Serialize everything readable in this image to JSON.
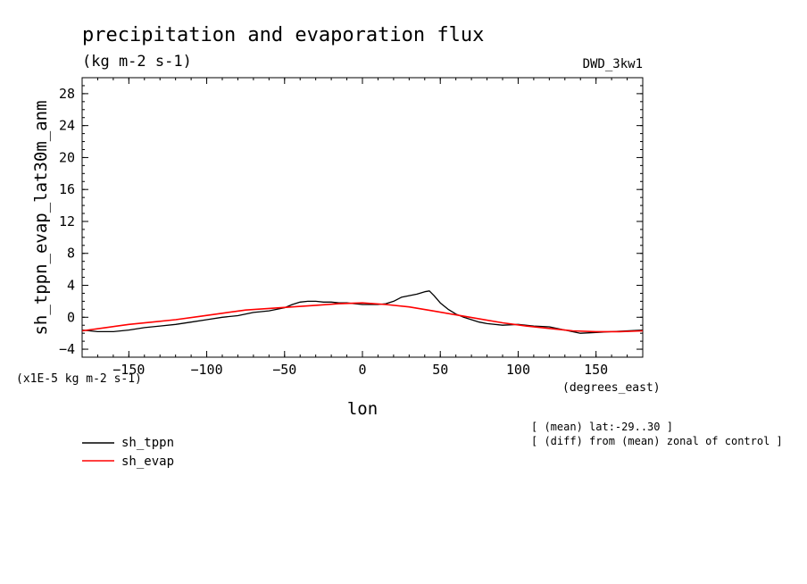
{
  "chart_data": {
    "type": "line",
    "title": "precipitation and evaporation flux",
    "units": "(kg m-2 s-1)",
    "model_label": "DWD_3kw1",
    "ylabel": "sh_tppn_evap_lat30m_anm",
    "scale_note": "(x1E-5 kg m-2 s-1)",
    "xlabel": "lon",
    "x_unit": "(degrees_east)",
    "xlim": [
      -180,
      180
    ],
    "ylim": [
      -5,
      30
    ],
    "xticks": [
      -150,
      -100,
      -50,
      0,
      50,
      100,
      150
    ],
    "yticks": [
      -4,
      0,
      4,
      8,
      12,
      16,
      20,
      24,
      28
    ],
    "notes": [
      "[ (mean) lat:-29..30 ]",
      "[ (diff) from (mean) zonal of control ]"
    ],
    "series": [
      {
        "name": "sh_tppn",
        "color": "#000000",
        "x": [
          -180,
          -170,
          -160,
          -150,
          -140,
          -130,
          -120,
          -110,
          -100,
          -90,
          -80,
          -70,
          -60,
          -50,
          -45,
          -40,
          -35,
          -30,
          -25,
          -20,
          -15,
          -10,
          -5,
          0,
          5,
          10,
          15,
          20,
          25,
          30,
          35,
          40,
          43,
          46,
          50,
          55,
          60,
          65,
          70,
          75,
          80,
          90,
          100,
          110,
          120,
          130,
          140,
          150,
          160,
          170,
          180
        ],
        "y": [
          -1.6,
          -1.8,
          -1.8,
          -1.6,
          -1.3,
          -1.1,
          -0.9,
          -0.6,
          -0.3,
          0.0,
          0.2,
          0.6,
          0.8,
          1.2,
          1.6,
          1.9,
          2.0,
          2.0,
          1.9,
          1.9,
          1.8,
          1.8,
          1.7,
          1.6,
          1.6,
          1.6,
          1.7,
          2.0,
          2.5,
          2.7,
          2.9,
          3.2,
          3.3,
          2.7,
          1.8,
          1.0,
          0.4,
          0.0,
          -0.3,
          -0.6,
          -0.8,
          -1.0,
          -0.9,
          -1.1,
          -1.2,
          -1.6,
          -2.0,
          -1.9,
          -1.8,
          -1.7,
          -1.6
        ]
      },
      {
        "name": "sh_evap",
        "color": "#ff0000",
        "x": [
          -180,
          -165,
          -150,
          -135,
          -120,
          -105,
          -90,
          -75,
          -60,
          -45,
          -30,
          -15,
          0,
          15,
          30,
          45,
          60,
          75,
          90,
          105,
          120,
          135,
          150,
          165,
          180
        ],
        "y": [
          -1.7,
          -1.3,
          -0.9,
          -0.6,
          -0.3,
          0.1,
          0.5,
          0.9,
          1.1,
          1.3,
          1.5,
          1.7,
          1.8,
          1.6,
          1.3,
          0.8,
          0.3,
          -0.2,
          -0.7,
          -1.1,
          -1.4,
          -1.7,
          -1.8,
          -1.8,
          -1.7
        ]
      }
    ]
  }
}
